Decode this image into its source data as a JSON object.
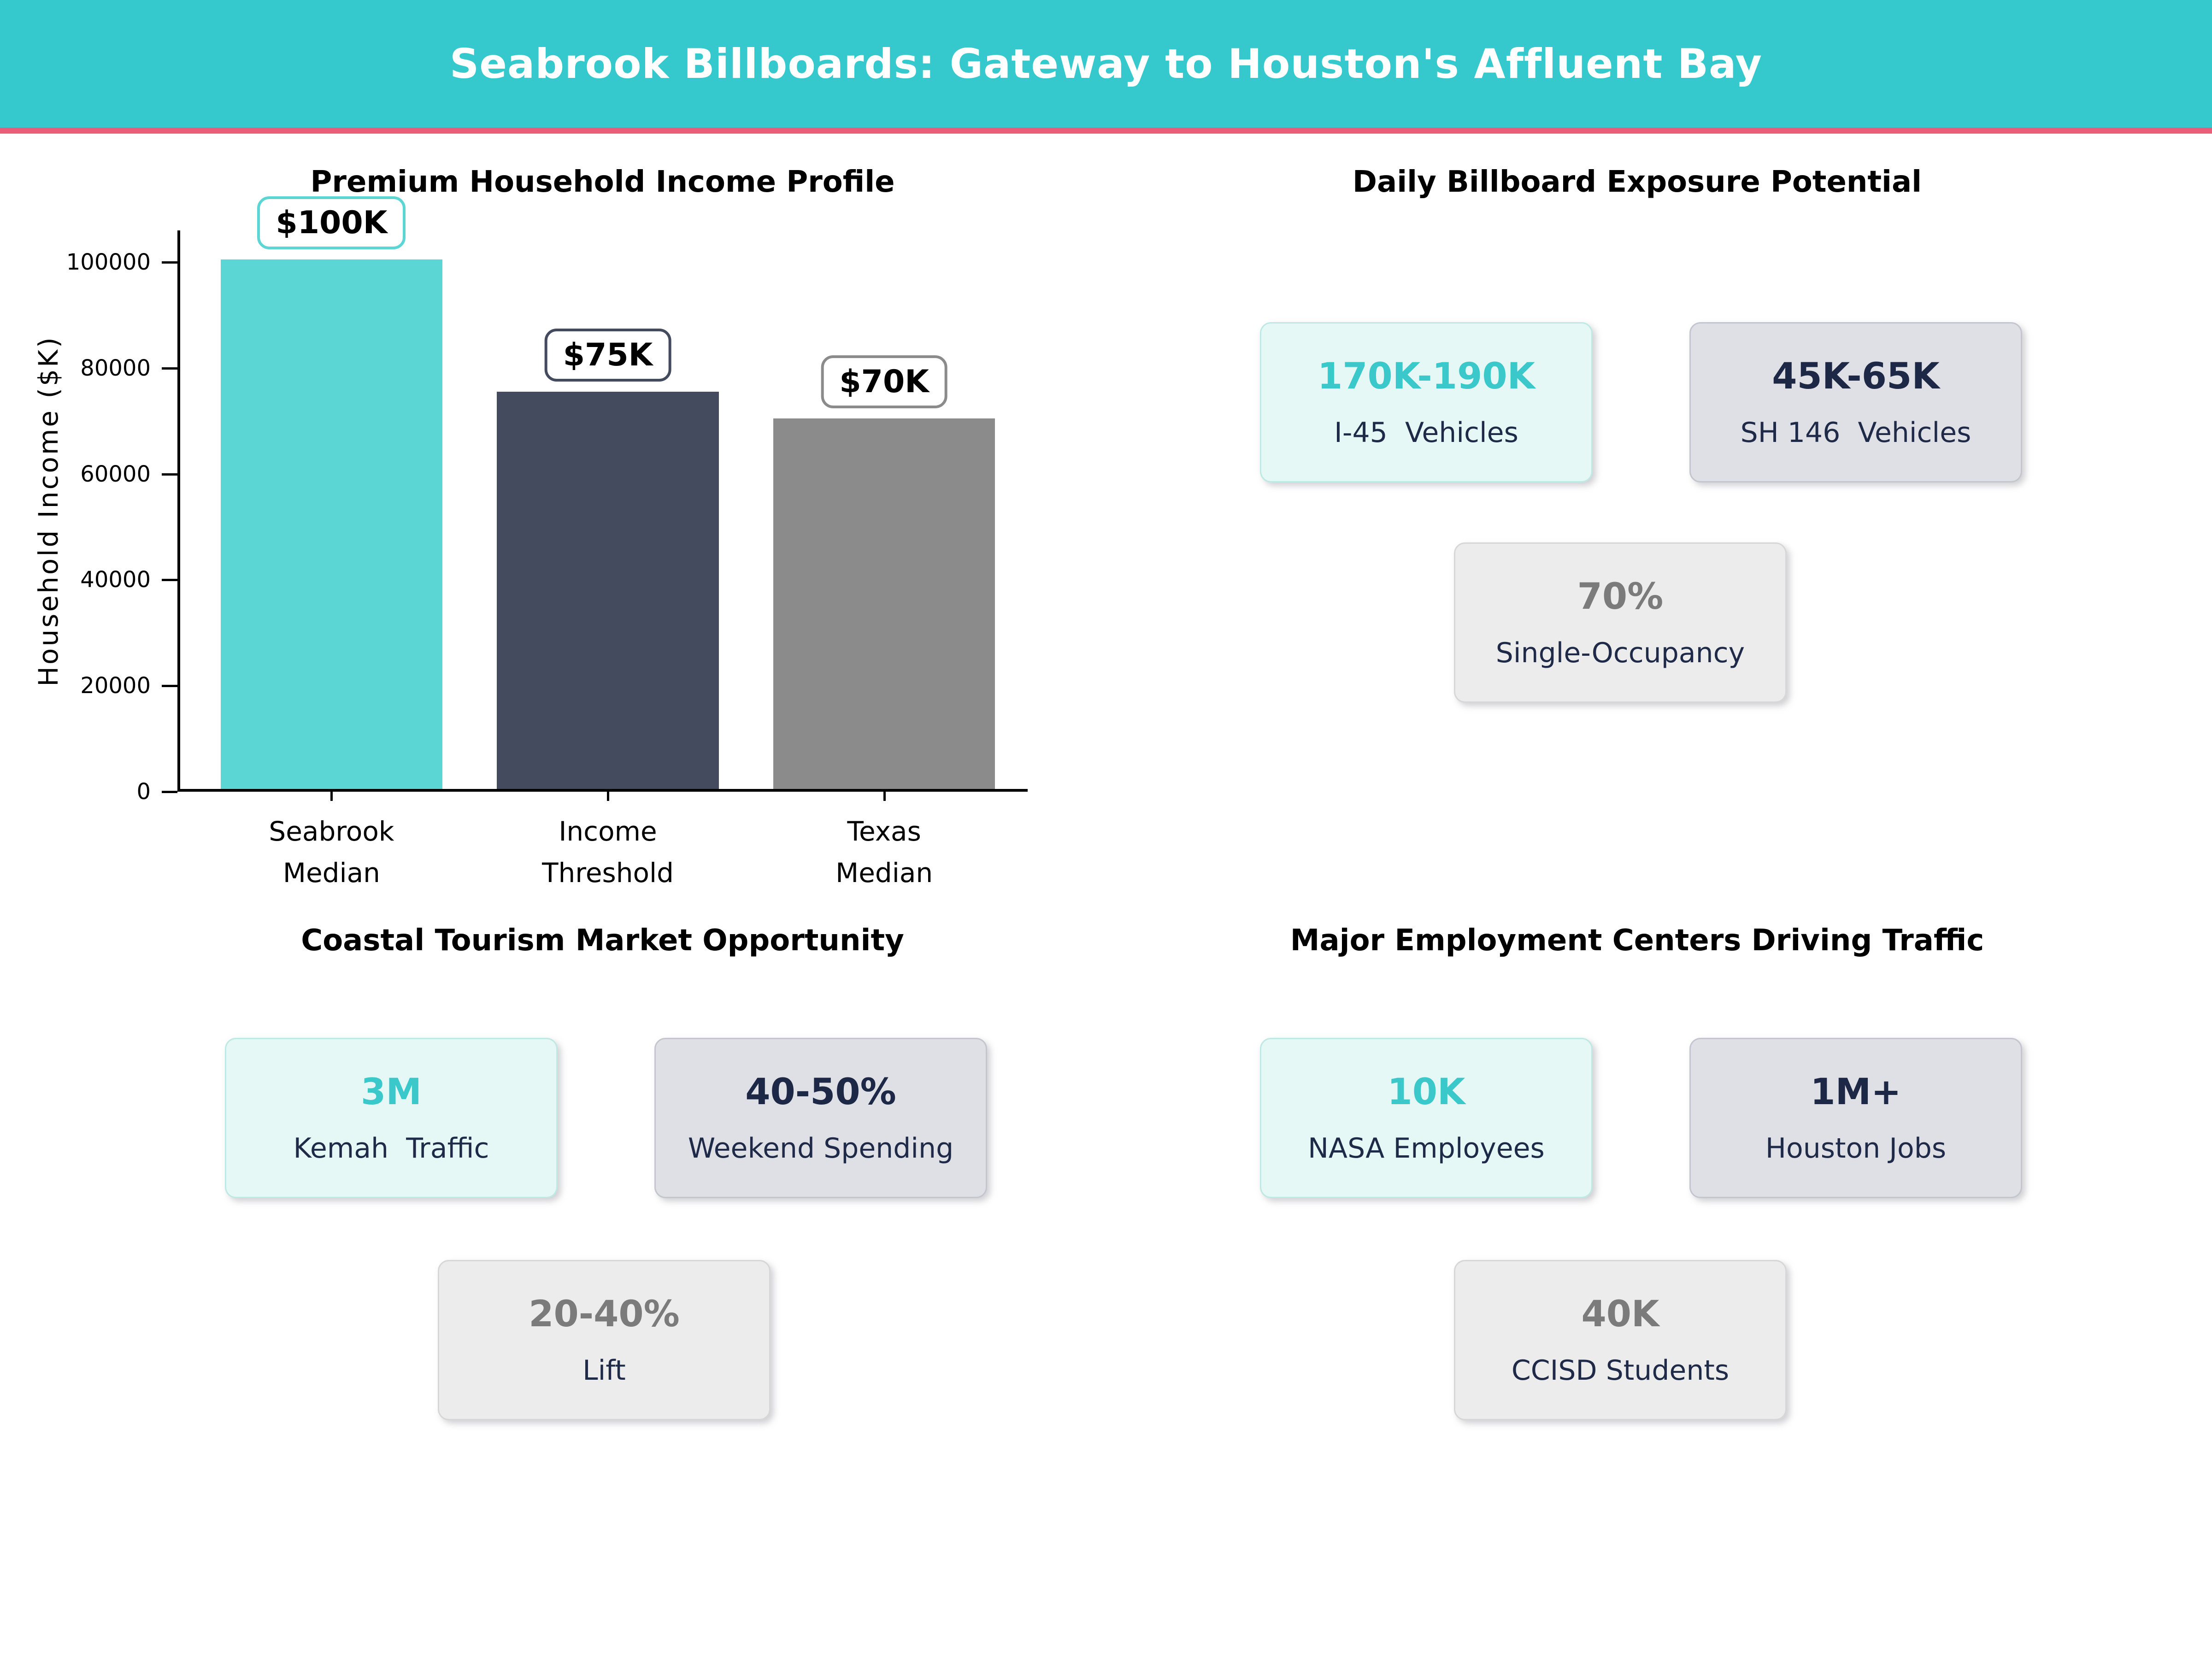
{
  "header": {
    "title": "Seabrook Billboards: Gateway to Houston's Affluent Bay"
  },
  "colors": {
    "header_bg": "#35C9CD",
    "header_text": "#FFFFFF",
    "accent_strip": "#EA5D76",
    "teal_accent": "#3BC8CA",
    "navy_accent": "#1D2846",
    "gray_accent": "#7B7B7B"
  },
  "chart_data": {
    "type": "bar",
    "title": "Premium Household Income Profile",
    "ylabel": "Household Income ($K)",
    "xlabel": "",
    "categories": [
      "Seabrook\nMedian",
      "Income\nThreshold",
      "Texas Median"
    ],
    "values": [
      100000,
      75000,
      70000
    ],
    "data_labels": [
      "$100K",
      "$75K",
      "$70K"
    ],
    "bar_colors": [
      "#5BD6D4",
      "#444B5E",
      "#8B8B8B"
    ],
    "yticks": [
      0,
      20000,
      40000,
      60000,
      80000,
      100000
    ],
    "ylim": [
      0,
      106000
    ],
    "grid": false,
    "legend": null
  },
  "sections": {
    "exposure": {
      "title": "Daily Billboard Exposure Potential",
      "cards": [
        {
          "value": "170K-190K",
          "label": "I-45  Vehicles",
          "theme": "teal"
        },
        {
          "value": "45K-65K",
          "label": "SH 146  Vehicles",
          "theme": "lavender"
        },
        {
          "value": "70%",
          "label": "Single-Occupancy",
          "theme": "gray"
        }
      ]
    },
    "tourism": {
      "title": "Coastal Tourism Market Opportunity",
      "cards": [
        {
          "value": "3M",
          "label": "Kemah  Traffic",
          "theme": "teal"
        },
        {
          "value": "40-50%",
          "label": "Weekend Spending",
          "theme": "lavender"
        },
        {
          "value": "20-40%",
          "label": "Lift",
          "theme": "gray"
        }
      ]
    },
    "employment": {
      "title": "Major Employment Centers Driving Traffic",
      "cards": [
        {
          "value": "10K",
          "label": "NASA Employees",
          "theme": "teal"
        },
        {
          "value": "1M+",
          "label": "Houston Jobs",
          "theme": "lavender"
        },
        {
          "value": "40K",
          "label": "CCISD Students",
          "theme": "gray"
        }
      ]
    }
  }
}
